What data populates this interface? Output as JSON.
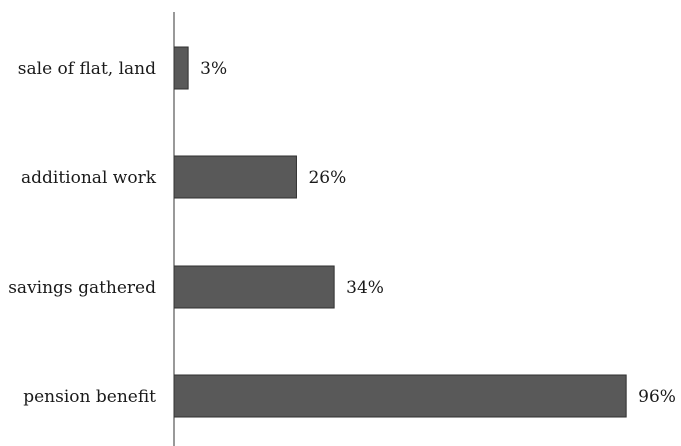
{
  "chart_data": {
    "type": "bar",
    "orientation": "horizontal",
    "title": "",
    "xlabel": "",
    "ylabel": "",
    "categories": [
      "sale of flat, land",
      "additional work",
      "savings gathered",
      "pension benefit"
    ],
    "values": [
      3,
      26,
      34,
      96
    ],
    "value_labels": [
      "3%",
      "26%",
      "34%",
      "96%"
    ],
    "unit": "%",
    "xlim": [
      0,
      100
    ],
    "grid": false,
    "legend": "none",
    "bar_color": "#595959",
    "bar_outline": "#2f2f2f",
    "axis_color": "#333333"
  }
}
